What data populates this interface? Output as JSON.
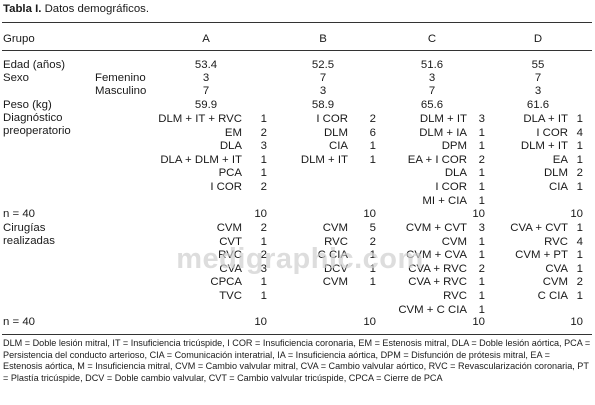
{
  "caption": {
    "label": "Tabla I.",
    "text": "Datos demográficos."
  },
  "header": {
    "group": "Grupo",
    "a": "A",
    "b": "B",
    "c": "C",
    "d": "D"
  },
  "edad": {
    "label": "Edad (años)",
    "a": "53.4",
    "b": "52.5",
    "c": "51.6",
    "d": "55"
  },
  "sexo": {
    "label": "Sexo",
    "fem_label": "Femenino",
    "fem": [
      "3",
      "7",
      "3",
      "7"
    ],
    "masc_label": "Masculino",
    "masc": [
      "7",
      "3",
      "7",
      "3"
    ]
  },
  "peso": {
    "label": "Peso (kg)",
    "a": "59.9",
    "b": "58.9",
    "c": "65.6",
    "d": "61.6"
  },
  "diag": {
    "label1": "Diagnóstico",
    "label2": "preoperatorio",
    "a": [
      [
        "DLM + IT + RVC",
        "1"
      ],
      [
        "EM",
        "2"
      ],
      [
        "DLA",
        "3"
      ],
      [
        "DLA + DLM + IT",
        "1"
      ],
      [
        "PCA",
        "1"
      ],
      [
        "I COR",
        "2"
      ]
    ],
    "b": [
      [
        "I COR",
        "2"
      ],
      [
        "DLM",
        "6"
      ],
      [
        "CIA",
        "1"
      ],
      [
        "DLM + IT",
        "1"
      ]
    ],
    "c": [
      [
        "DLM + IT",
        "3"
      ],
      [
        "DLM + IA",
        "1"
      ],
      [
        "DPM",
        "1"
      ],
      [
        "EA + I COR",
        "2"
      ],
      [
        "DLA",
        "1"
      ],
      [
        "I COR",
        "1"
      ],
      [
        "MI + CIA",
        "1"
      ]
    ],
    "d": [
      [
        "DLA + IT",
        "1"
      ],
      [
        "I COR",
        "4"
      ],
      [
        "DLM + IT",
        "1"
      ],
      [
        "EA",
        "1"
      ],
      [
        "DLM",
        "2"
      ],
      [
        "CIA",
        "1"
      ]
    ]
  },
  "n1": {
    "label": "n = 40",
    "a": "10",
    "b": "10",
    "c": "10",
    "d": "10"
  },
  "cir": {
    "label1": "Cirugías",
    "label2": "realizadas",
    "a": [
      [
        "CVM",
        "2"
      ],
      [
        "CVT",
        "1"
      ],
      [
        "RVC",
        "2"
      ],
      [
        "CVA",
        "3"
      ],
      [
        "CPCA",
        "1"
      ],
      [
        "TVC",
        "1"
      ]
    ],
    "b": [
      [
        "CVM",
        "5"
      ],
      [
        "RVC",
        "2"
      ],
      [
        "C CIA",
        "1"
      ],
      [
        "DCV",
        "1"
      ],
      [
        "CVM",
        "1"
      ]
    ],
    "c": [
      [
        "CVM + CVT",
        "3"
      ],
      [
        "CVM",
        "1"
      ],
      [
        "CVM + CVA",
        "1"
      ],
      [
        "CVA + RVC",
        "2"
      ],
      [
        "CVA + RVC",
        "1"
      ],
      [
        "RVC",
        "1"
      ],
      [
        "CVM + C CIA",
        "1"
      ]
    ],
    "d": [
      [
        "CVA + CVT",
        "1"
      ],
      [
        "RVC",
        "4"
      ],
      [
        "CVM + PT",
        "1"
      ],
      [
        "CVA",
        "1"
      ],
      [
        "CVM",
        "2"
      ],
      [
        "C CIA",
        "1"
      ]
    ]
  },
  "n2": {
    "label": "n = 40",
    "a": "10",
    "b": "10",
    "c": "10",
    "d": "10"
  },
  "footnote": "DLM = Doble lesión mitral, IT = Insuficiencia tricúspide, I COR = Insuficiencia coronaria, EM = Estenosis mitral, DLA = Doble lesión aórtica, PCA = Persistencia del conducto arterioso, CIA = Comunicación interatrial, IA = Insuficiencia aórtica, DPM = Disfunción de prótesis mitral, EA = Estenosis aórtica, M = Insuficiencia mitral, CVM = Cambio valvular mitral, CVA = Cambio valvular aórtico, RVC = Revascularización coronaria, PT = Plastía tricúspide, DCV = Doble cambio valvular, CVT = Cambio valvular tricúspide, CPCA = Cierre de PCA",
  "watermark": "medigraphic.com"
}
